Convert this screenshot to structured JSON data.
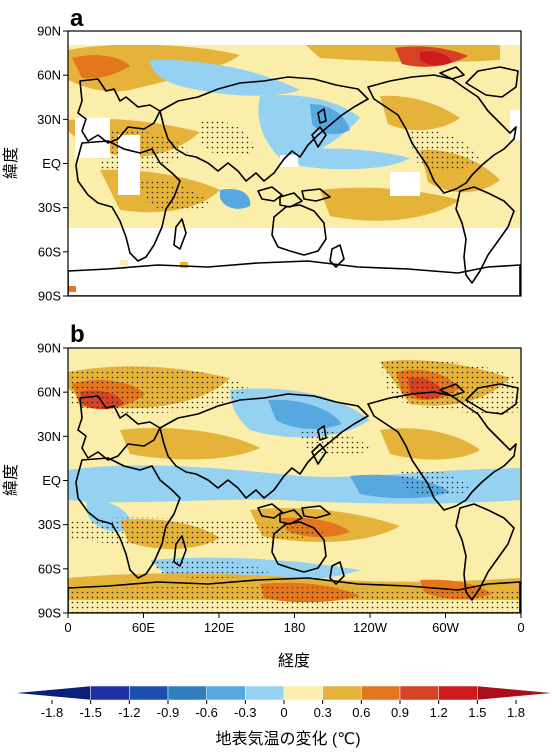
{
  "chart_data": [
    {
      "type": "heatmap",
      "panel_label": "a",
      "ylabel": "緯度",
      "y_ticks": [
        "90N",
        "60N",
        "30N",
        "EQ",
        "30S",
        "60S",
        "90S"
      ],
      "x_ticks": [],
      "xlim": [
        0,
        360
      ],
      "ylim": [
        -90,
        90
      ],
      "grid": false,
      "masked_regions": "white areas where data missing"
    },
    {
      "type": "heatmap",
      "panel_label": "b",
      "ylabel": "緯度",
      "xlabel": "経度",
      "y_ticks": [
        "90N",
        "60N",
        "30N",
        "EQ",
        "30S",
        "60S",
        "90S"
      ],
      "x_ticks": [
        "0",
        "60E",
        "120E",
        "180",
        "120W",
        "60W",
        "0"
      ],
      "xlim": [
        0,
        360
      ],
      "ylim": [
        -90,
        90
      ],
      "grid": false
    }
  ],
  "colorbar": {
    "title": "地表気温の変化 (℃)",
    "tick_labels": [
      "-1.8",
      "-1.5",
      "-1.2",
      "-0.9",
      "-0.6",
      "-0.3",
      "0",
      "0.3",
      "0.6",
      "0.9",
      "1.2",
      "1.5",
      "1.8"
    ],
    "colors": [
      "#0a1f7a",
      "#1f2fa8",
      "#1e4fb0",
      "#2f7fc1",
      "#58a8e0",
      "#95d2f2",
      "#fbeeaa",
      "#e6b33a",
      "#e4761c",
      "#d54324",
      "#cf1a1d",
      "#a80f1a"
    ]
  }
}
